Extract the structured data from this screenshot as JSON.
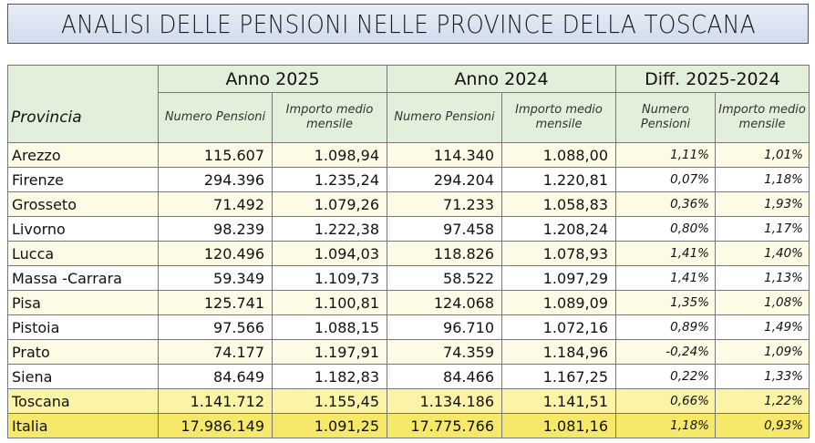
{
  "title": "ANALISI DELLE PENSIONI NELLE PROVINCE DELLA TOSCANA",
  "header": {
    "group_2025": "Anno 2025",
    "group_2024": "Anno 2024",
    "group_diff": "Diff. 2025-2024",
    "provincia": "Provincia",
    "numero_pensioni": "Numero Pensioni",
    "importo_medio": "Importo medio mensile"
  },
  "rows": [
    {
      "name": "Arezzo",
      "n2025": "115.607",
      "i2025": "1.098,94",
      "n2024": "114.340",
      "i2024": "1.088,00",
      "dn": "1,11%",
      "di": "1,01%"
    },
    {
      "name": "Firenze",
      "n2025": "294.396",
      "i2025": "1.235,24",
      "n2024": "294.204",
      "i2024": "1.220,81",
      "dn": "0,07%",
      "di": "1,18%"
    },
    {
      "name": "Grosseto",
      "n2025": "71.492",
      "i2025": "1.079,26",
      "n2024": "71.233",
      "i2024": "1.058,83",
      "dn": "0,36%",
      "di": "1,93%"
    },
    {
      "name": "Livorno",
      "n2025": "98.239",
      "i2025": "1.222,38",
      "n2024": "97.458",
      "i2024": "1.208,24",
      "dn": "0,80%",
      "di": "1,17%"
    },
    {
      "name": "Lucca",
      "n2025": "120.496",
      "i2025": "1.094,03",
      "n2024": "118.826",
      "i2024": "1.078,93",
      "dn": "1,41%",
      "di": "1,40%"
    },
    {
      "name": "Massa -Carrara",
      "n2025": "59.349",
      "i2025": "1.109,73",
      "n2024": "58.522",
      "i2024": "1.097,29",
      "dn": "1,41%",
      "di": "1,13%"
    },
    {
      "name": "Pisa",
      "n2025": "125.741",
      "i2025": "1.100,81",
      "n2024": "124.068",
      "i2024": "1.089,09",
      "dn": "1,35%",
      "di": "1,08%"
    },
    {
      "name": "Pistoia",
      "n2025": "97.566",
      "i2025": "1.088,15",
      "n2024": "96.710",
      "i2024": "1.072,16",
      "dn": "0,89%",
      "di": "1,49%"
    },
    {
      "name": "Prato",
      "n2025": "74.177",
      "i2025": "1.197,91",
      "n2024": "74.359",
      "i2024": "1.184,96",
      "dn": "-0,24%",
      "di": "1,09%"
    },
    {
      "name": "Siena",
      "n2025": "84.649",
      "i2025": "1.182,83",
      "n2024": "84.466",
      "i2024": "1.167,25",
      "dn": "0,22%",
      "di": "1,33%"
    },
    {
      "name": "Toscana",
      "n2025": "1.141.712",
      "i2025": "1.155,45",
      "n2024": "1.134.186",
      "i2024": "1.141,51",
      "dn": "0,66%",
      "di": "1,22%"
    },
    {
      "name": "Italia",
      "n2025": "17.986.149",
      "i2025": "1.091,25",
      "n2024": "17.775.766",
      "i2024": "1.081,16",
      "dn": "1,18%",
      "di": "0,93%"
    }
  ],
  "colors": {
    "title_bg": "#d9e1f2",
    "header_bg": "#e2efda",
    "row_alt_bg": "#fdfbe6",
    "toscana_bg": "#fbf3a6",
    "italia_bg": "#f6e96a"
  }
}
